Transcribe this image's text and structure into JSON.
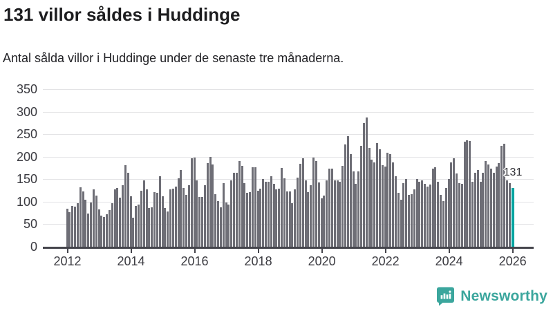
{
  "header": {
    "title": "131 villor såldes i Huddinge",
    "subtitle": "Antal sålda villor i Huddinge under de senaste tre månaderna."
  },
  "branding": {
    "name": "Newsworthy",
    "icon": "bar-chart-speech-bubble-icon",
    "color": "#3ba69d"
  },
  "chart_data": {
    "type": "bar",
    "title": "131 villor såldes i Huddinge",
    "subtitle": "Antal sålda villor i Huddinge under de senaste tre månaderna.",
    "x_interval": "monthly",
    "x_start": "2012-01",
    "x_end": "2026-01",
    "x_tick_labels": [
      "2012",
      "2014",
      "2016",
      "2018",
      "2020",
      "2022",
      "2024",
      "2026"
    ],
    "x_ticks_every_n_bars": 24,
    "ylim": [
      0,
      350
    ],
    "y_ticks": [
      0,
      50,
      100,
      150,
      200,
      250,
      300,
      350
    ],
    "grid": true,
    "bar_color": "#6e6e76",
    "highlight": {
      "index": 168,
      "value": 131,
      "label": "131",
      "color": "#00a4a0"
    },
    "values": [
      85,
      77,
      91,
      89,
      96,
      132,
      123,
      105,
      73,
      98,
      128,
      113,
      83,
      69,
      66,
      72,
      81,
      97,
      127,
      130,
      109,
      137,
      181,
      164,
      112,
      65,
      91,
      93,
      124,
      147,
      127,
      86,
      87,
      121,
      120,
      157,
      112,
      86,
      79,
      127,
      129,
      133,
      152,
      170,
      131,
      115,
      137,
      196,
      198,
      148,
      110,
      110,
      137,
      186,
      199,
      182,
      117,
      102,
      87,
      142,
      98,
      93,
      147,
      165,
      165,
      191,
      179,
      142,
      119,
      122,
      177,
      177,
      124,
      129,
      150,
      145,
      145,
      156,
      139,
      127,
      129,
      175,
      152,
      123,
      123,
      96,
      127,
      153,
      184,
      197,
      147,
      122,
      136,
      198,
      191,
      143,
      107,
      114,
      147,
      174,
      174,
      147,
      147,
      145,
      179,
      227,
      245,
      205,
      168,
      139,
      168,
      224,
      275,
      287,
      220,
      193,
      187,
      230,
      216,
      181,
      178,
      209,
      205,
      187,
      157,
      119,
      104,
      142,
      150,
      115,
      117,
      127,
      151,
      145,
      147,
      139,
      134,
      138,
      173,
      177,
      145,
      115,
      102,
      131,
      150,
      188,
      196,
      162,
      142,
      140,
      234,
      237,
      235,
      145,
      164,
      170,
      145,
      164,
      191,
      182,
      173,
      164,
      178,
      186,
      224,
      228,
      147,
      142,
      131
    ]
  }
}
